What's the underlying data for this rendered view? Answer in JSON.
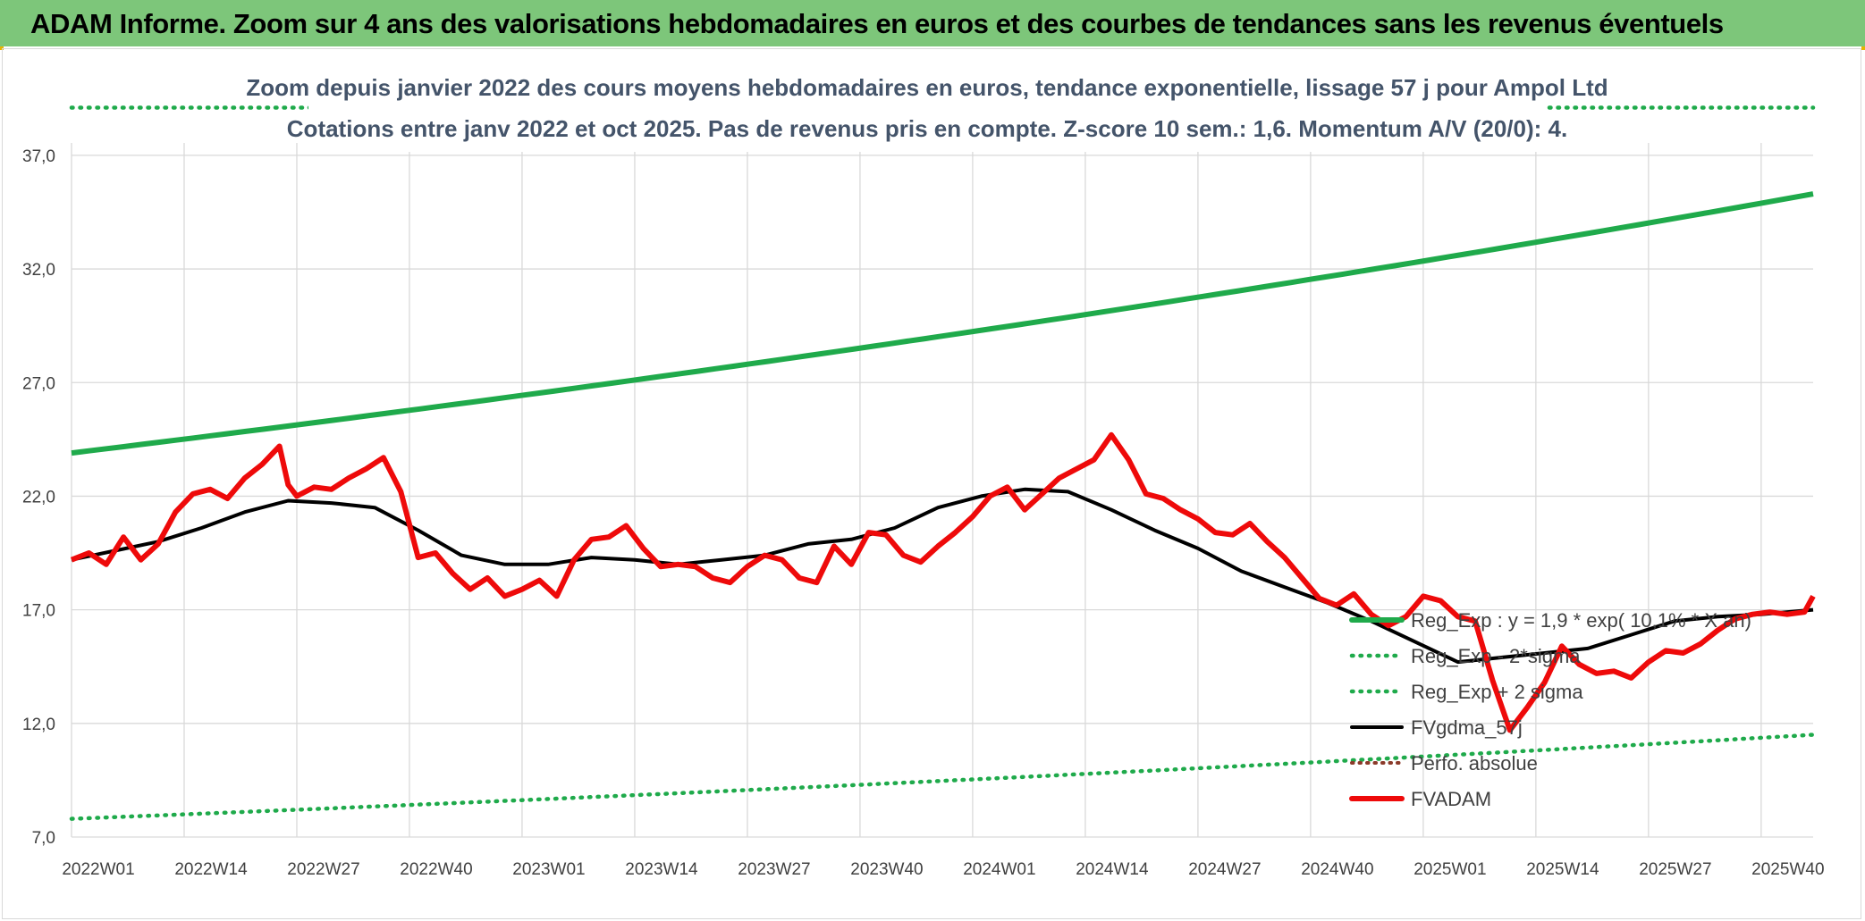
{
  "header": {
    "title": "ADAM Informe. Zoom sur 4 ans des valorisations hebdomadaires en euros et des courbes de tendances sans les revenus éventuels"
  },
  "chart_data": {
    "type": "line",
    "title_line1": "Zoom depuis janvier 2022 des cours moyens hebdomadaires en euros, tendance exponentielle, lissage 57 j pour Ampol Ltd",
    "title_line2": "Cotations entre janv 2022 et oct 2025. Pas de revenus pris en compte. Z-score 10 sem.: 1,6. Momentum A/V (20/0): 4.",
    "xlabel": "",
    "ylabel": "",
    "ylim": [
      7,
      39
    ],
    "yticks": [
      "7,0",
      "12,0",
      "17,0",
      "22,0",
      "27,0",
      "32,0",
      "37,0"
    ],
    "ytick_values": [
      7,
      12,
      17,
      22,
      27,
      32,
      37
    ],
    "xticks": [
      "2022W01",
      "2022W14",
      "2022W27",
      "2022W40",
      "2023W01",
      "2023W14",
      "2023W27",
      "2023W40",
      "2024W01",
      "2024W14",
      "2024W27",
      "2024W40",
      "2025W01",
      "2025W14",
      "2025W27",
      "2025W40"
    ],
    "xlim": [
      0,
      201
    ],
    "x_unit": "week index since 2022W01",
    "grid": true,
    "legend_position": "bottom-right",
    "colors": {
      "reg_exp": "#1faa4b",
      "bands": "#1faa4b",
      "fvgdma": "#000000",
      "fvadam": "#ee0a0a",
      "perfo": "#8b3a2a",
      "grid": "#d9d9d9",
      "banner": "#7dc67a"
    },
    "legend": [
      "Reg_Exp : y = 1,9 * exp( 10,1% *  X  an)",
      "Reg_Exp - 2*sigma",
      "Reg_Exp + 2 sigma",
      "FVgdma_57j",
      "Perfo. absolue",
      "FVADAM"
    ],
    "series": [
      {
        "name": "Reg_Exp : y = 1,9 * exp( 10,1% *  X  an)",
        "style": "solid",
        "x": [
          0,
          201
        ],
        "y": [
          23.9,
          35.3
        ],
        "exponential": true
      },
      {
        "name": "Reg_Exp - 2*sigma",
        "style": "dotted",
        "x": [
          0,
          201
        ],
        "y": [
          7.8,
          11.5
        ],
        "exponential": true
      },
      {
        "name": "Reg_Exp + 2 sigma",
        "style": "dotted",
        "x": [
          0,
          201
        ],
        "y": [
          39.1,
          39.1
        ],
        "exponential": false
      },
      {
        "name": "FVgdma_57j",
        "style": "solid",
        "x": [
          0,
          10,
          15,
          20,
          25,
          30,
          35,
          40,
          45,
          50,
          55,
          60,
          65,
          70,
          75,
          80,
          85,
          90,
          95,
          100,
          105,
          110,
          115,
          120,
          125,
          130,
          135,
          140,
          145,
          150,
          155,
          160,
          165,
          170,
          175,
          180,
          185,
          190,
          195,
          201
        ],
        "y": [
          19.2,
          20.0,
          20.6,
          21.3,
          21.8,
          21.7,
          21.5,
          20.5,
          19.4,
          19.0,
          19.0,
          19.3,
          19.2,
          19.0,
          19.2,
          19.4,
          19.9,
          20.1,
          20.6,
          21.5,
          22.0,
          22.3,
          22.2,
          21.4,
          20.5,
          19.7,
          18.7,
          18.0,
          17.3,
          16.5,
          15.6,
          14.7,
          14.9,
          15.1,
          15.3,
          15.9,
          16.5,
          16.7,
          16.8,
          17.0
        ]
      },
      {
        "name": "FVADAM",
        "style": "solid",
        "x": [
          0,
          2,
          4,
          6,
          8,
          10,
          12,
          14,
          16,
          18,
          20,
          22,
          24,
          25,
          26,
          28,
          30,
          32,
          34,
          36,
          38,
          40,
          42,
          44,
          46,
          48,
          50,
          52,
          54,
          56,
          58,
          60,
          62,
          64,
          66,
          68,
          70,
          72,
          74,
          76,
          78,
          80,
          82,
          84,
          86,
          88,
          90,
          92,
          94,
          96,
          98,
          100,
          102,
          104,
          106,
          108,
          110,
          112,
          114,
          116,
          118,
          120,
          122,
          124,
          126,
          128,
          130,
          132,
          134,
          136,
          138,
          140,
          142,
          144,
          146,
          148,
          150,
          152,
          154,
          156,
          158,
          160,
          162,
          164,
          166,
          168,
          170,
          172,
          174,
          176,
          178,
          180,
          182,
          184,
          186,
          188,
          190,
          192,
          194,
          196,
          198,
          200,
          201
        ],
        "y": [
          19.2,
          19.5,
          19.0,
          20.2,
          19.2,
          19.9,
          21.3,
          22.1,
          22.3,
          21.9,
          22.8,
          23.4,
          24.2,
          22.5,
          22.0,
          22.4,
          22.3,
          22.8,
          23.2,
          23.7,
          22.2,
          19.3,
          19.5,
          18.6,
          17.9,
          18.4,
          17.6,
          17.9,
          18.3,
          17.6,
          19.2,
          20.1,
          20.2,
          20.7,
          19.7,
          18.9,
          19.0,
          18.9,
          18.4,
          18.2,
          18.9,
          19.4,
          19.2,
          18.4,
          18.2,
          19.8,
          19.0,
          20.4,
          20.3,
          19.4,
          19.1,
          19.8,
          20.4,
          21.1,
          22.0,
          22.4,
          21.4,
          22.1,
          22.8,
          23.2,
          23.6,
          24.7,
          23.6,
          22.1,
          21.9,
          21.4,
          21.0,
          20.4,
          20.3,
          20.8,
          20.0,
          19.3,
          18.4,
          17.5,
          17.2,
          17.7,
          16.8,
          16.3,
          16.7,
          17.6,
          17.4,
          16.7,
          16.5,
          13.9,
          11.7,
          12.7,
          13.8,
          15.4,
          14.6,
          14.2,
          14.3,
          14.0,
          14.7,
          15.2,
          15.1,
          15.5,
          16.1,
          16.6,
          16.8,
          16.9,
          16.8,
          16.9,
          17.6
        ]
      }
    ]
  }
}
